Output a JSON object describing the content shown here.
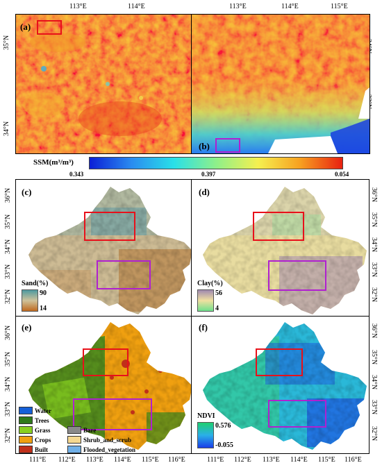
{
  "colors": {
    "ssm_ramp": [
      "#0b1fd6",
      "#2a8cf0",
      "#29e0e8",
      "#8ef08a",
      "#f5f050",
      "#f7a020",
      "#e82010"
    ],
    "sand_ramp": [
      "#4d9aa0",
      "#cfc29a",
      "#c06a20"
    ],
    "clay_ramp": [
      "#a08ab0",
      "#f0e0a0",
      "#6ee08c"
    ],
    "ndvi_ramp": [
      "#1fcf70",
      "#2ab0e8",
      "#1a3ee8"
    ],
    "box_red": "#e8101a",
    "box_purple": "#b020d0"
  },
  "panel_labels": {
    "a": "(a)",
    "b": "(b)",
    "c": "(c)",
    "d": "(d)",
    "e": "(e)",
    "f": "(f)"
  },
  "top_axis": {
    "a_lon": [
      "113°E",
      "114°E"
    ],
    "b_lon": [
      "113°E",
      "114°E",
      "115°E"
    ],
    "a_lat": [
      "35°N",
      "34°N"
    ],
    "b_lat": [
      "34°N",
      "33°N"
    ]
  },
  "ssm_bar": {
    "title": "SSM(m³/m³)",
    "ticks": [
      "0.343",
      "0.397",
      "0.054"
    ]
  },
  "grid_axis": {
    "lat": [
      "36°N",
      "35°N",
      "34°N",
      "33°N",
      "32°N"
    ],
    "lon": [
      "111°E",
      "112°E",
      "113°E",
      "114°E",
      "115°E",
      "116°E"
    ]
  },
  "sand_legend": {
    "title": "Sand(%)",
    "max": "90",
    "min": "14"
  },
  "clay_legend": {
    "title": "Clay(%)",
    "max": "56",
    "min": "4"
  },
  "ndvi_legend": {
    "title": "NDVI",
    "max": "0.576",
    "min": "-0.055"
  },
  "landcover_legend": [
    {
      "label": "Water",
      "color": "#1560d8"
    },
    {
      "label": "Trees",
      "color": "#2f7a1a"
    },
    {
      "label": "Grass",
      "color": "#88d020"
    },
    {
      "label": "Crops",
      "color": "#f0a010"
    },
    {
      "label": "Built",
      "color": "#c0301a"
    },
    {
      "label": "Bare",
      "color": "#8a8a8a"
    },
    {
      "label": "Shrub_and_scrub",
      "color": "#f5d890"
    },
    {
      "label": "Flooded_vegetation",
      "color": "#70b0e8"
    }
  ]
}
